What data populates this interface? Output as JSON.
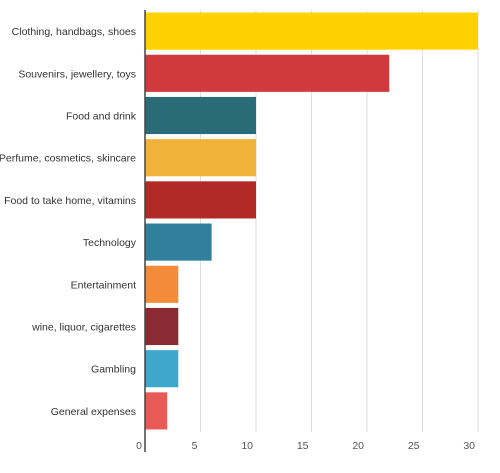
{
  "chart_data": {
    "type": "bar",
    "orientation": "horizontal",
    "title": "",
    "xlabel": "",
    "ylabel": "",
    "xlim": [
      0,
      30
    ],
    "xticks": [
      0,
      5,
      10,
      15,
      20,
      25,
      30
    ],
    "grid": true,
    "categories": [
      "Clothing, handbags, shoes",
      "Souvenirs, jewellery, toys",
      "Food and drink",
      "Perfume, cosmetics, skincare",
      "Food to take home, vitamins",
      "Technology",
      "Entertainment",
      "wine, liquor, cigarettes",
      "Gambling",
      "General expenses"
    ],
    "values": [
      30,
      22,
      10,
      10,
      10,
      6,
      3,
      3,
      3,
      2
    ],
    "colors": [
      "#ffd100",
      "#d03a3c",
      "#2a6b78",
      "#f1b23a",
      "#b22a25",
      "#327f9c",
      "#f38b3a",
      "#8a2b33",
      "#3fa7c9",
      "#e85a55"
    ]
  }
}
